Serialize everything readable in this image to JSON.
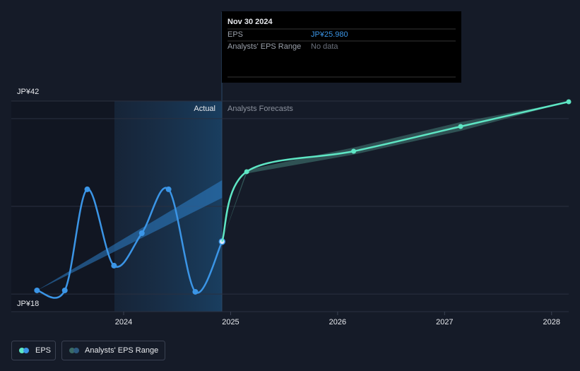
{
  "chart_data": {
    "type": "line",
    "xlim": [
      2022.95,
      2028.16
    ],
    "xticks": [
      2024,
      2025,
      2026,
      2027,
      2028
    ],
    "ylim": [
      18,
      42
    ],
    "yticks": [
      {
        "value": 18,
        "label": "JP¥18"
      },
      {
        "value": 42,
        "label": "JP¥42"
      }
    ],
    "ygrid": [
      20,
      30,
      40
    ],
    "series": [
      {
        "name": "EPS",
        "color": "#3b95e6",
        "x": [
          2023.19,
          2023.45,
          2023.66,
          2023.91,
          2024.17,
          2024.42,
          2024.67,
          2024.92
        ],
        "values": [
          20.42,
          20.42,
          31.94,
          23.24,
          26.94,
          31.94,
          20.26,
          25.98
        ]
      },
      {
        "color": "#5ee6c4",
        "x": [
          2024.92,
          2025.15,
          2026.15,
          2027.15,
          2028.16
        ],
        "values": [
          25.98,
          33.95,
          36.28,
          39.1,
          41.92
        ]
      }
    ],
    "ranges": [
      {
        "name": "Analysts' EPS Range",
        "color": "#2d7fc8",
        "x": [
          2023.19,
          2024.92
        ],
        "low": [
          20.42,
          30.97
        ],
        "high": [
          20.42,
          32.98
        ]
      },
      {
        "color": "#3a6a66",
        "x": [
          2024.92,
          2025.15,
          2026.15,
          2027.15,
          2028.16
        ],
        "low": [
          25.98,
          33.75,
          35.9,
          38.6,
          41.92
        ],
        "high": [
          25.98,
          34.15,
          36.7,
          39.6,
          41.92
        ]
      }
    ],
    "region_labels": [
      "Actual",
      "Analysts Forecasts"
    ],
    "tooltip": {
      "date": "Nov 30 2024",
      "rows": [
        [
          "EPS",
          "JP¥25.980"
        ],
        [
          "Analysts' EPS Range",
          "No data"
        ]
      ]
    }
  }
}
